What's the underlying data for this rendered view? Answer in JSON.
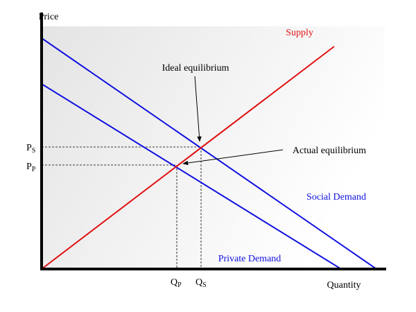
{
  "axes": {
    "y_label": "Price",
    "x_label": "Quantity"
  },
  "curves": {
    "supply": "Supply",
    "social_demand": "Social Demand",
    "private_demand": "Private Demand"
  },
  "annotations": {
    "ideal": "Ideal equilibrium",
    "actual": "Actual equilibrium"
  },
  "axis_marks": {
    "ps": {
      "main": "P",
      "sub": "S"
    },
    "pp": {
      "main": "P",
      "sub": "P"
    },
    "qp": {
      "main": "Q",
      "sub": "P"
    },
    "qs": {
      "main": "Q",
      "sub": "S"
    }
  }
}
